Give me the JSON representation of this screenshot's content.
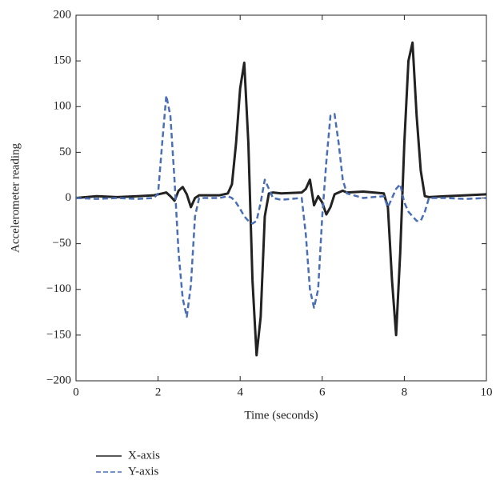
{
  "chart_data": {
    "type": "line",
    "xlabel": "Time (seconds)",
    "ylabel": "Accelerometer reading",
    "x": [
      0,
      0.5,
      1,
      1.5,
      1.9,
      2.0,
      2.1,
      2.2,
      2.3,
      2.4,
      2.5,
      2.6,
      2.7,
      2.8,
      2.9,
      3.0,
      3.5,
      3.7,
      3.8,
      3.9,
      4.0,
      4.1,
      4.2,
      4.3,
      4.4,
      4.5,
      4.6,
      4.7,
      4.8,
      5.0,
      5.5,
      5.6,
      5.7,
      5.8,
      5.9,
      6.0,
      6.1,
      6.2,
      6.3,
      6.4,
      6.5,
      6.6,
      7.0,
      7.5,
      7.6,
      7.7,
      7.8,
      7.9,
      8.0,
      8.1,
      8.2,
      8.3,
      8.4,
      8.5,
      8.6,
      9.0,
      9.5,
      10
    ],
    "series": [
      {
        "name": "X-axis",
        "color": "#222222",
        "dash": false,
        "values": [
          0,
          2,
          1,
          2,
          3,
          4,
          5,
          6,
          2,
          -3,
          8,
          12,
          4,
          -10,
          0,
          3,
          3,
          5,
          15,
          60,
          120,
          148,
          60,
          -90,
          -172,
          -130,
          -20,
          5,
          6,
          5,
          6,
          10,
          20,
          -8,
          2,
          -5,
          -18,
          -10,
          4,
          6,
          8,
          6,
          7,
          5,
          -10,
          -90,
          -150,
          -60,
          60,
          150,
          170,
          90,
          30,
          2,
          1,
          2,
          3,
          4
        ]
      },
      {
        "name": "Y-axis",
        "color": "#4a6fb5",
        "dash": true,
        "values": [
          0,
          -1,
          0,
          -1,
          0,
          5,
          60,
          112,
          90,
          20,
          -60,
          -110,
          -130,
          -95,
          -20,
          0,
          0,
          2,
          0,
          -5,
          -12,
          -20,
          -25,
          -28,
          -25,
          -5,
          20,
          10,
          0,
          -2,
          0,
          -40,
          -100,
          -120,
          -100,
          -20,
          40,
          90,
          92,
          60,
          20,
          5,
          0,
          2,
          -10,
          0,
          10,
          15,
          -5,
          -15,
          -20,
          -25,
          -25,
          -15,
          0,
          0,
          -1,
          0
        ]
      }
    ],
    "xlim": [
      0,
      10
    ],
    "xticks": [
      0,
      2,
      4,
      6,
      8,
      10
    ],
    "ylim": [
      -200,
      200
    ],
    "yticks": [
      {
        "value": -200,
        "label": "−200"
      },
      {
        "value": -150,
        "label": "−150"
      },
      {
        "value": -100,
        "label": "−100"
      },
      {
        "value": -50,
        "label": "−50"
      },
      0,
      50,
      100,
      150,
      200
    ]
  }
}
